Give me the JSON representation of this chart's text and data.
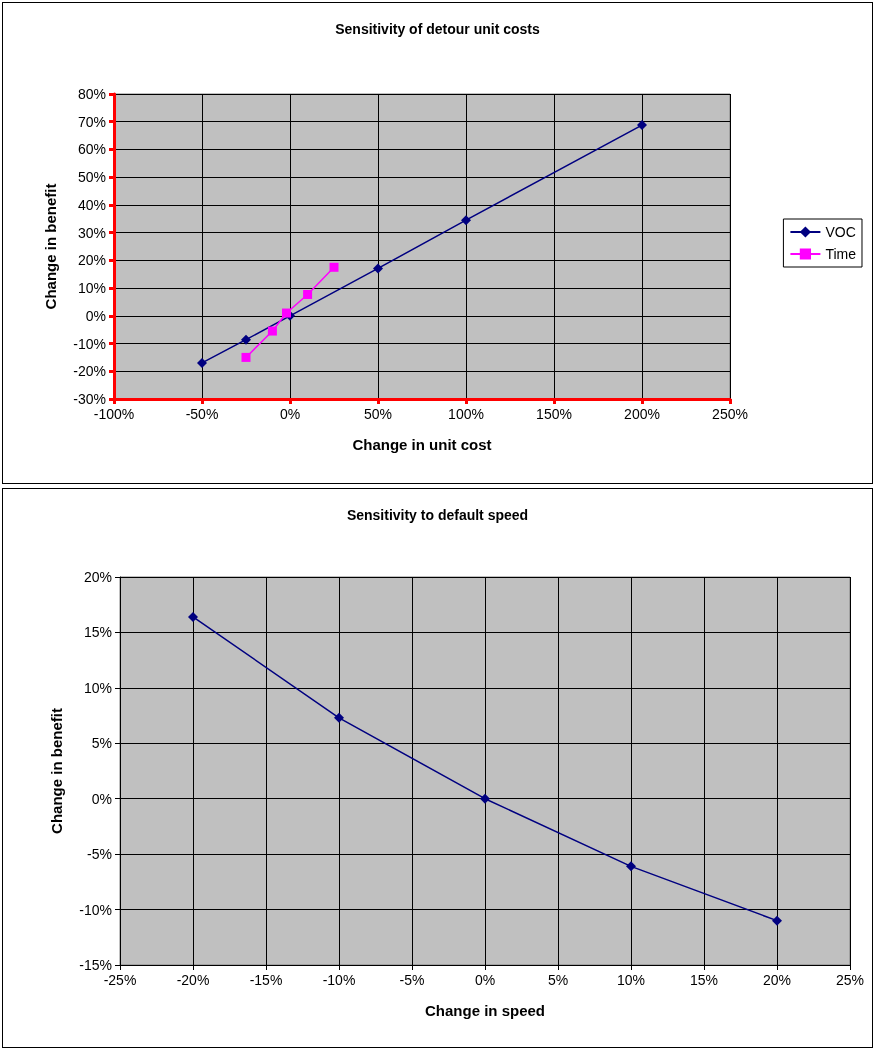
{
  "chart_data": [
    {
      "type": "line",
      "title": "Sensitivity of detour unit costs",
      "xlabel": "Change in unit cost",
      "ylabel": "Change in benefit",
      "series": [
        {
          "name": "VOC",
          "color": "#000080",
          "marker": "diamond",
          "x": [
            -50,
            -25,
            0,
            50,
            100,
            200
          ],
          "values": [
            -17,
            -8.6,
            0,
            17.1,
            34.5,
            68.8
          ]
        },
        {
          "name": "Time",
          "color": "#ff00ff",
          "marker": "square",
          "x": [
            -25,
            -10,
            -2,
            10,
            25
          ],
          "values": [
            -15,
            -5.5,
            1,
            7.7,
            17.5
          ]
        }
      ],
      "xlim": [
        -100,
        250
      ],
      "xticks": [
        {
          "value": -100,
          "label": "-100%"
        },
        {
          "value": -50,
          "label": "-50%"
        },
        {
          "value": 0,
          "label": "0%"
        },
        {
          "value": 50,
          "label": "50%"
        },
        {
          "value": 100,
          "label": "100%"
        },
        {
          "value": 150,
          "label": "150%"
        },
        {
          "value": 200,
          "label": "200%"
        },
        {
          "value": 250,
          "label": "250%"
        }
      ],
      "ylim": [
        -30,
        80
      ],
      "yticks": [
        {
          "value": -30,
          "label": "-30%"
        },
        {
          "value": -20,
          "label": "-20%"
        },
        {
          "value": -10,
          "label": "-10%"
        },
        {
          "value": 0,
          "label": "0%"
        },
        {
          "value": 10,
          "label": "10%"
        },
        {
          "value": 20,
          "label": "20%"
        },
        {
          "value": 30,
          "label": "30%"
        },
        {
          "value": 40,
          "label": "40%"
        },
        {
          "value": 50,
          "label": "50%"
        },
        {
          "value": 60,
          "label": "60%"
        },
        {
          "value": 70,
          "label": "70%"
        },
        {
          "value": 80,
          "label": "80%"
        }
      ],
      "grid": true,
      "legend": "right"
    },
    {
      "type": "line",
      "title": "Sensitivity to default speed",
      "xlabel": "Change in speed",
      "ylabel": "Change in benefit",
      "series": [
        {
          "color": "#000080",
          "marker": "diamond",
          "x": [
            -20,
            -10,
            0,
            10,
            20
          ],
          "values": [
            16.4,
            7.3,
            0,
            -6.1,
            -11
          ]
        }
      ],
      "xlim": [
        -25,
        25
      ],
      "xticks": [
        {
          "value": -25,
          "label": "-25%"
        },
        {
          "value": -20,
          "label": "-20%"
        },
        {
          "value": -15,
          "label": "-15%"
        },
        {
          "value": -10,
          "label": "-10%"
        },
        {
          "value": -5,
          "label": "-5%"
        },
        {
          "value": 0,
          "label": "0%"
        },
        {
          "value": 5,
          "label": "5%"
        },
        {
          "value": 10,
          "label": "10%"
        },
        {
          "value": 15,
          "label": "15%"
        },
        {
          "value": 20,
          "label": "20%"
        },
        {
          "value": 25,
          "label": "25%"
        }
      ],
      "ylim": [
        -15,
        20
      ],
      "yticks": [
        {
          "value": -15,
          "label": "-15%"
        },
        {
          "value": -10,
          "label": "-10%"
        },
        {
          "value": -5,
          "label": "-5%"
        },
        {
          "value": 0,
          "label": "0%"
        },
        {
          "value": 5,
          "label": "5%"
        },
        {
          "value": 10,
          "label": "10%"
        },
        {
          "value": 15,
          "label": "15%"
        },
        {
          "value": 20,
          "label": "20%"
        }
      ],
      "grid": true
    }
  ]
}
